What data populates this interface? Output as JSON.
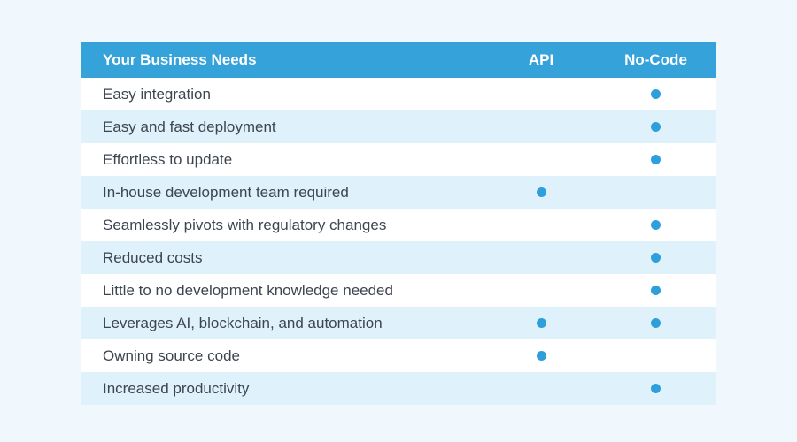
{
  "table": {
    "headers": {
      "need": "Your Business Needs",
      "api": "API",
      "nocode": "No-Code"
    },
    "accent_color": "#35a2da",
    "dot_color": "#2f9fdc",
    "rows": [
      {
        "label": "Easy integration",
        "api": false,
        "nocode": true
      },
      {
        "label": "Easy and fast deployment",
        "api": false,
        "nocode": true
      },
      {
        "label": "Effortless to update",
        "api": false,
        "nocode": true
      },
      {
        "label": "In-house development team required",
        "api": true,
        "nocode": false
      },
      {
        "label": "Seamlessly pivots with regulatory changes",
        "api": false,
        "nocode": true
      },
      {
        "label": "Reduced costs",
        "api": false,
        "nocode": true
      },
      {
        "label": "Little to no development knowledge needed",
        "api": false,
        "nocode": true
      },
      {
        "label": "Leverages AI, blockchain, and automation",
        "api": true,
        "nocode": true
      },
      {
        "label": "Owning source code",
        "api": true,
        "nocode": false
      },
      {
        "label": "Increased productivity",
        "api": false,
        "nocode": true
      }
    ]
  }
}
